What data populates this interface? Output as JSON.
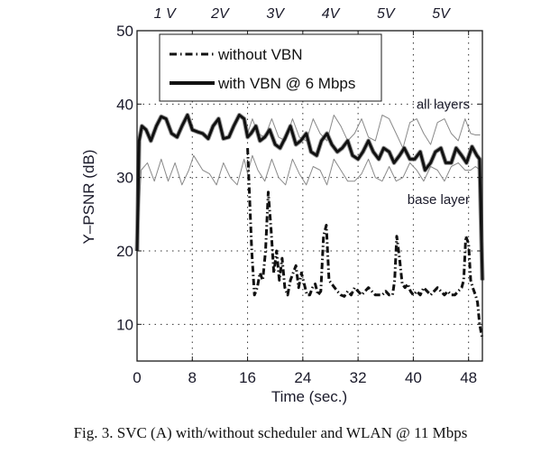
{
  "chart_data": {
    "type": "line",
    "title": "",
    "xlabel": "Time (sec.)",
    "ylabel": "Y–PSNR (dB)",
    "xlim": [
      0,
      50
    ],
    "ylim": [
      5,
      50
    ],
    "grid": true,
    "x_ticks": [
      0,
      8,
      16,
      24,
      32,
      40,
      48
    ],
    "x_tick_labels": [
      "0",
      "8",
      "16",
      "24",
      "32",
      "40",
      "48"
    ],
    "y_ticks": [
      10,
      20,
      30,
      40,
      50
    ],
    "y_tick_labels": [
      "10",
      "20",
      "30",
      "40",
      "50"
    ],
    "top_labels": [
      {
        "x": 4,
        "text": "1 V"
      },
      {
        "x": 12,
        "text": "2V"
      },
      {
        "x": 20,
        "text": "3V"
      },
      {
        "x": 28,
        "text": "4V"
      },
      {
        "x": 36,
        "text": "5V"
      },
      {
        "x": 44,
        "text": "5V"
      }
    ],
    "annotations": [
      {
        "text": "all layers",
        "x": 47,
        "y": 40
      },
      {
        "text": "base layer",
        "x": 47,
        "y": 27
      }
    ],
    "legend": {
      "position": "top-left",
      "entries": [
        {
          "label": "without VBN",
          "style": "dash-dot"
        },
        {
          "label": "with VBN @ 6 Mbps",
          "style": "solid-thick"
        }
      ]
    },
    "series": [
      {
        "name": "all layers (reference)",
        "style": "thin-gray",
        "x": [
          16,
          16.7,
          17.5,
          18.5,
          19.5,
          20.5,
          21.5,
          22.5,
          23.5,
          24.5,
          25.5,
          26.5,
          27.5,
          28.5,
          29.5,
          30.5,
          31.5,
          32.5,
          33.5,
          34.5,
          35.5,
          36.5,
          37.5,
          38.5,
          39.5,
          40.5,
          41.5,
          42.5,
          43.5,
          44.5,
          45.5,
          46.5,
          47.5,
          48.3,
          49,
          49.7
        ],
        "y": [
          36,
          38,
          36,
          35.5,
          38,
          35.5,
          35,
          38,
          35.5,
          35,
          38,
          36,
          35,
          38.5,
          37,
          35,
          36,
          38,
          35.5,
          35,
          38.5,
          38,
          36,
          34,
          37.5,
          38,
          36,
          34.5,
          37.5,
          38,
          36,
          35,
          38,
          36,
          35.8,
          35.8
        ]
      },
      {
        "name": "base layer (reference)",
        "style": "thin-gray",
        "x": [
          0.2,
          0.6,
          1.5,
          2.5,
          3.5,
          4.5,
          5.5,
          6.5,
          7.5,
          8.2,
          9.5,
          10.5,
          11.5,
          12.5,
          13.5,
          14.5,
          15.5,
          16,
          16.7,
          17.5,
          18.5,
          19.5,
          20.5,
          21.5,
          22.5,
          23.5,
          24.5,
          25.5,
          26.5,
          27.5,
          28.5,
          29.5,
          30.5,
          31.5,
          32.5,
          33.5,
          34.5,
          35.5,
          36.5,
          37.5,
          38.5,
          39.5,
          40.5,
          41.5,
          42.5,
          43.5,
          44.5,
          45.5,
          46.5,
          47.5,
          48.3,
          49,
          49.7
        ],
        "y": [
          24,
          31,
          32,
          29.5,
          32.5,
          29.5,
          32,
          29,
          31,
          33,
          31,
          30.5,
          29,
          32,
          30,
          29,
          32.5,
          30.5,
          33,
          31,
          29.5,
          32.5,
          30,
          29,
          32.5,
          30.5,
          29,
          31.5,
          31,
          29,
          32.5,
          31,
          29.5,
          29.5,
          30.5,
          32.5,
          30,
          29.5,
          31.5,
          29.5,
          30,
          32,
          31,
          29.5,
          31.5,
          31,
          29.5,
          31.5,
          32,
          31,
          31,
          31.5,
          31
        ]
      },
      {
        "name": "with VBN @ 6 Mbps",
        "style": "solid-thick",
        "x": [
          0,
          0.3,
          0.7,
          1.3,
          2,
          2.8,
          3.5,
          4.2,
          5,
          5.8,
          6.5,
          7.3,
          8,
          8.8,
          9.5,
          10.3,
          11,
          11.8,
          12.5,
          13.3,
          14,
          14.8,
          15.5,
          16,
          16.5,
          17.2,
          17.8,
          18.5,
          19.2,
          20,
          20.7,
          21.5,
          22.2,
          23,
          23.7,
          24.5,
          25.2,
          26,
          26.7,
          27.5,
          28.2,
          29,
          29.7,
          30.5,
          31.2,
          32,
          32.7,
          33.5,
          34.2,
          35,
          35.7,
          36.5,
          37.2,
          38,
          38.7,
          39.5,
          40.2,
          41,
          41.7,
          42.5,
          43.2,
          44,
          44.7,
          45.5,
          46.2,
          47,
          47.7,
          48.5,
          49.2,
          49.6,
          50
        ],
        "y": [
          20,
          35,
          37,
          36.5,
          35,
          37,
          38.3,
          38,
          36,
          35.5,
          37,
          38.5,
          36.5,
          36.2,
          36,
          35.3,
          37,
          38,
          35.3,
          35.5,
          37,
          38.5,
          38,
          35.5,
          36,
          37,
          35,
          35.5,
          36.5,
          34.5,
          34,
          35.5,
          37,
          34.5,
          35,
          36,
          33.5,
          33,
          35,
          36,
          34.5,
          33.5,
          34,
          35,
          33,
          32.5,
          33.5,
          35,
          33.5,
          32.5,
          34,
          33.5,
          32,
          33,
          34,
          32.5,
          32.5,
          33.5,
          31,
          32,
          33.5,
          34,
          32,
          32,
          34,
          33,
          32,
          34.2,
          33,
          32.5,
          16
        ]
      },
      {
        "name": "without VBN",
        "style": "dash-dot",
        "x": [
          0,
          0.3,
          0.7,
          1.3,
          2,
          2.8,
          3.5,
          4.2,
          5,
          5.8,
          6.5,
          7.3,
          8,
          8.8,
          9.5,
          10.3,
          11,
          11.8,
          12.5,
          13.3,
          14,
          14.8,
          15.5,
          16,
          16.3,
          16.6,
          17,
          17.4,
          17.8,
          18.2,
          18.6,
          19,
          19.4,
          19.8,
          20.2,
          20.6,
          21,
          21.4,
          21.8,
          22.2,
          22.6,
          23,
          23.4,
          23.8,
          24.2,
          24.6,
          25,
          25.4,
          25.8,
          26.2,
          26.6,
          27,
          27.4,
          27.8,
          28.2,
          28.6,
          29,
          29.5,
          30,
          30.5,
          31,
          31.5,
          32,
          32.5,
          33,
          33.5,
          34,
          34.5,
          35,
          35.5,
          36,
          36.5,
          37,
          37.3,
          37.6,
          38,
          38.4,
          38.8,
          39.2,
          39.6,
          40,
          40.5,
          41,
          41.5,
          42,
          42.5,
          43,
          43.5,
          44,
          44.5,
          45,
          45.5,
          46,
          46.5,
          47,
          47.3,
          47.6,
          48,
          48.3,
          48.6,
          49,
          49.3,
          49.6,
          50
        ],
        "y": [
          20,
          35,
          37,
          36.5,
          35,
          37,
          38.3,
          38,
          36,
          35.5,
          37,
          38.5,
          36.5,
          36.2,
          36,
          35.3,
          37,
          38,
          35.3,
          35.5,
          37,
          38.5,
          38,
          34,
          27,
          20,
          14,
          15,
          17,
          16,
          20,
          28,
          23,
          17,
          20,
          16,
          19,
          15,
          14,
          16,
          17,
          18,
          15,
          17,
          15.5,
          14,
          14,
          15,
          15.5,
          14,
          14.5,
          22,
          23.5,
          16,
          15.5,
          15,
          14.5,
          14,
          13.8,
          14.5,
          14,
          15,
          14.5,
          14,
          14.5,
          15,
          14.5,
          14,
          14,
          14,
          14.5,
          14,
          14,
          16,
          22,
          19,
          15.5,
          15,
          15.5,
          14.5,
          14,
          14.5,
          14,
          15,
          14.5,
          14,
          14.5,
          15,
          14.5,
          14,
          14.5,
          14,
          14,
          14.5,
          15,
          16,
          22,
          21,
          16,
          15,
          14,
          13,
          10,
          8
        ]
      }
    ]
  },
  "caption": "Fig. 3. SVC (A) with/without scheduler and WLAN @ 11 Mbps",
  "colors": {
    "axis": "#1a1a1a",
    "grid": "#333333",
    "thick_line": "#111111",
    "thick_line_halo": "#555555",
    "thin_line": "#8a8a8a",
    "text": "#1a1a2a"
  }
}
